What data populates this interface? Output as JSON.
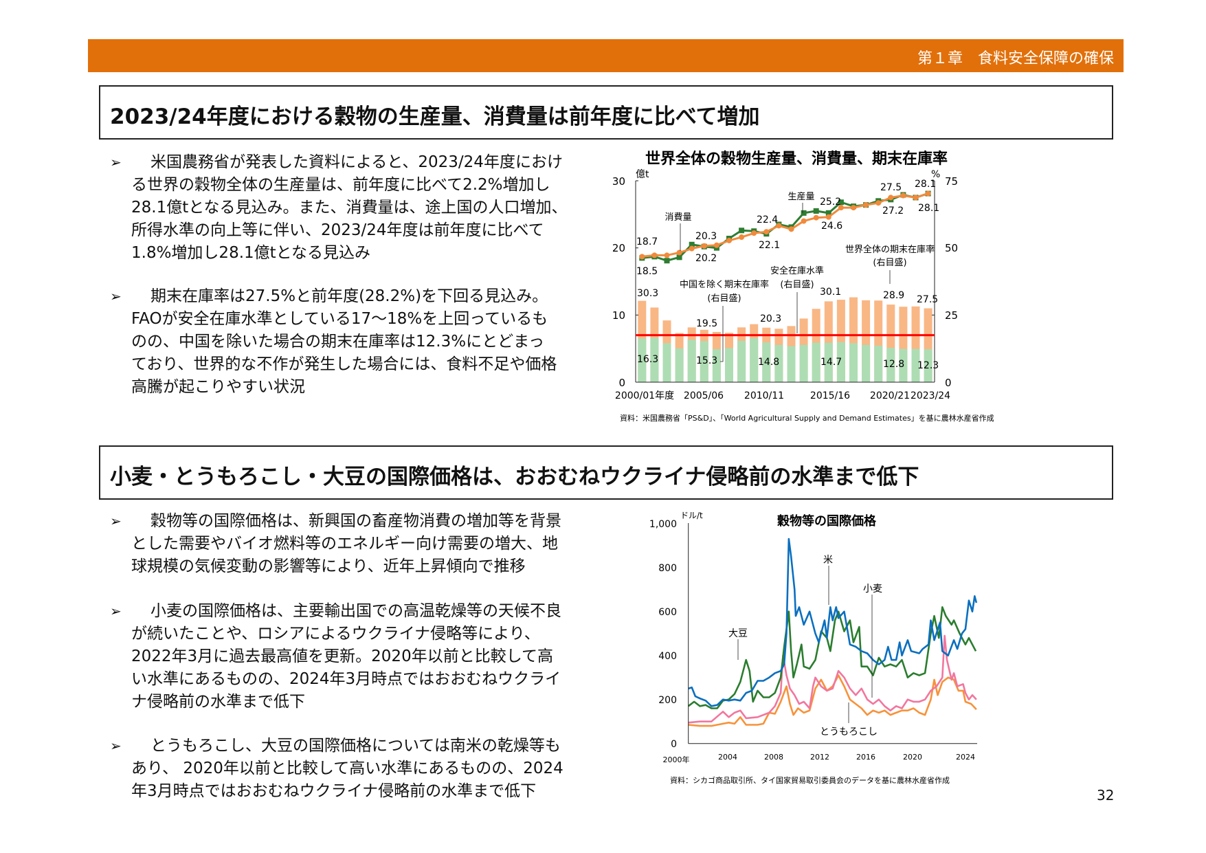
{
  "header": {
    "chapter": "第１章　食料安全保障の確保",
    "color": "#E2700A"
  },
  "section1": {
    "title": "2023/24年度における穀物の生産量、消費量は前年度に比べて増加",
    "bullets": [
      {
        "lines": [
          "米国農務省が発表した資料によると、2023/24年度におけ",
          "る世界の穀物全体の生産量は、前年度に比べて2.2%増加し",
          "28.1億tとなる見込み。また、消費量は、途上国の人口増加、",
          "所得水準の向上等に伴い、2023/24年度は前年度に比べて",
          "1.8%増加し28.1億tとなる見込み"
        ]
      },
      {
        "lines": [
          "期末在庫率は27.5%と前年度(28.2%)を下回る見込み。",
          "FAOが安全在庫水準としている17～18%を上回っているも",
          "のの、中国を除いた場合の期末在庫率は12.3%にとどまっ",
          "ており、世界的な不作が発生した場合には、食料不足や価格",
          "高騰が起こりやすい状況"
        ]
      }
    ]
  },
  "section2": {
    "title": "小麦・とうもろこし・大豆の国際価格は、おおむねウクライナ侵略前の水準まで低下",
    "bullets": [
      {
        "lines": [
          "穀物等の国際価格は、新興国の畜産物消費の増加等を背景",
          "とした需要やバイオ燃料等のエネルギー向け需要の増大、地",
          "球規模の気候変動の影響等により、近年上昇傾向で推移"
        ]
      },
      {
        "lines": [
          "小麦の国際価格は、主要輸出国での高温乾燥等の天候不良",
          "が続いたことや、ロシアによるウクライナ侵略等により、",
          "2022年3月に過去最高値を更新。2020年以前と比較して高",
          "い水準にあるものの、2024年3月時点ではおおむねウクライ",
          "ナ侵略前の水準まで低下"
        ]
      },
      {
        "lines": [
          "とうもろこし、大豆の国際価格については南米の乾燥等も",
          "あり、 2020年以前と比較して高い水準にあるものの、2024",
          "年3月時点ではおおむねウクライナ侵略前の水準まで低下"
        ]
      }
    ]
  },
  "bullet_glyph": "➢",
  "page_number": "32",
  "chart_data": [
    {
      "type": "bar+line",
      "title": "世界全体の穀物生産量、消費量、期末在庫率",
      "ylabel_left": "億t",
      "ylabel_right": "%",
      "ylim_left": [
        0,
        30
      ],
      "ylim_right": [
        0,
        75
      ],
      "yticks_left": [
        "30",
        "20",
        "10",
        "0"
      ],
      "yticks_right": [
        "75",
        "50",
        "25",
        "0"
      ],
      "categories": [
        "2000/01",
        "2001/02",
        "2002/03",
        "2003/04",
        "2004/05",
        "2005/06",
        "2006/07",
        "2007/08",
        "2008/09",
        "2009/10",
        "2010/11",
        "2011/12",
        "2012/13",
        "2013/14",
        "2014/15",
        "2015/16",
        "2016/17",
        "2017/18",
        "2018/19",
        "2019/20",
        "2020/21",
        "2021/22",
        "2022/23",
        "2023/24"
      ],
      "xtick_labels": [
        "2000/01年度",
        "2005/06",
        "2010/11",
        "2015/16",
        "2020/21",
        "2023/24"
      ],
      "series": [
        {
          "name": "生産量",
          "axis": "left",
          "kind": "line",
          "color": "#2E7D32",
          "values": [
            18.5,
            18.7,
            18.1,
            18.6,
            20.5,
            20.2,
            20.0,
            21.4,
            22.6,
            22.5,
            22.1,
            23.5,
            23.1,
            25.2,
            25.5,
            25.2,
            26.8,
            26.2,
            26.4,
            27.0,
            27.2,
            27.9,
            27.5,
            28.1
          ]
        },
        {
          "name": "消費量",
          "axis": "left",
          "kind": "line",
          "color": "#F08A3C",
          "values": [
            18.7,
            18.9,
            18.9,
            19.3,
            19.9,
            20.3,
            20.4,
            21.1,
            21.6,
            22.2,
            22.4,
            23.3,
            22.8,
            24.0,
            24.5,
            24.6,
            26.0,
            26.0,
            26.4,
            26.7,
            27.5,
            27.8,
            27.5,
            28.1
          ]
        },
        {
          "name": "世界全体の期末在庫率(右目盛)",
          "axis": "right",
          "kind": "bar",
          "color": "#F9B785",
          "values": [
            30.3,
            27.8,
            23.0,
            18.3,
            20.4,
            19.5,
            18.7,
            18.4,
            20.4,
            21.6,
            20.3,
            19.9,
            20.9,
            23.7,
            27.3,
            30.1,
            30.7,
            31.6,
            30.5,
            30.4,
            28.9,
            28.1,
            28.2,
            27.5
          ]
        },
        {
          "name": "中国を除く期末在庫率(右目盛)",
          "axis": "right",
          "kind": "bar",
          "color": "#AEDDB4",
          "values": [
            16.3,
            16.6,
            14.5,
            12.6,
            15.8,
            15.3,
            12.3,
            12.7,
            15.4,
            16.4,
            14.8,
            13.9,
            13.4,
            13.9,
            14.7,
            14.7,
            14.9,
            14.5,
            13.9,
            13.6,
            12.8,
            12.4,
            12.4,
            12.3
          ]
        }
      ],
      "reference_line": {
        "name": "安全在庫水準(右目盛)",
        "value": 17.5,
        "color": "#FF0000"
      },
      "annotations": {
        "consumption": "消費量",
        "production": "生産量",
        "world_ratio": "世界全体の期末在庫率",
        "world_ratio_axis": "(右目盛)",
        "china_ratio": "中国を除く期末在庫率",
        "china_ratio_axis": "(右目盛)",
        "safety": "安全在庫水準",
        "safety_axis": "(右目盛)"
      },
      "data_labels": [
        "18.7",
        "18.5",
        "20.3",
        "20.2",
        "22.4",
        "22.1",
        "25.2",
        "24.6",
        "27.5",
        "27.2",
        "28.1",
        "28.1",
        "30.3",
        "19.5",
        "20.3",
        "30.1",
        "28.9",
        "27.5",
        "16.3",
        "15.3",
        "14.8",
        "14.7",
        "12.8",
        "12.3"
      ],
      "source": "資料：米国農務省「PS&D」、「World Agricultural Supply and Demand Estimates」を基に農林水産省作成"
    },
    {
      "type": "line",
      "title": "穀物等の国際価格",
      "ylabel": "ドル/t",
      "ylim": [
        0,
        1000
      ],
      "xlim": [
        2000,
        2025
      ],
      "yticks": [
        "1,000",
        "800",
        "600",
        "400",
        "200",
        "0"
      ],
      "xticks": [
        "2000年",
        "2004",
        "2008",
        "2012",
        "2016",
        "2020",
        "2024"
      ],
      "series": [
        {
          "name": "米",
          "color": "#0B6FBF",
          "x": [
            2000,
            2000.3,
            2000.6,
            2001,
            2001.5,
            2002,
            2002.5,
            2003,
            2003.5,
            2004,
            2004.5,
            2005,
            2005.5,
            2006,
            2006.5,
            2007,
            2007.5,
            2008,
            2008.3,
            2008.5,
            2008.7,
            2008.9,
            2009.2,
            2009.3,
            2009.6,
            2010,
            2010.5,
            2011,
            2011.3,
            2011.8,
            2012,
            2012.3,
            2012.5,
            2012.8,
            2013,
            2013.5,
            2014,
            2014.5,
            2015,
            2015.5,
            2016,
            2016.5,
            2017,
            2017.3,
            2017.6,
            2018,
            2018.3,
            2018.5,
            2019,
            2019.3,
            2020,
            2020.3,
            2020.8,
            2021,
            2021.3,
            2021.8,
            2022,
            2022.5,
            2023,
            2023.3,
            2023.7,
            2024,
            2024.3,
            2024.6,
            2024.8,
            2024.95
          ],
          "y": [
            250,
            255,
            215,
            205,
            195,
            170,
            175,
            200,
            195,
            200,
            195,
            230,
            240,
            285,
            285,
            300,
            320,
            330,
            360,
            500,
            930,
            850,
            700,
            580,
            620,
            540,
            600,
            500,
            460,
            560,
            480,
            620,
            560,
            620,
            570,
            600,
            450,
            440,
            420,
            410,
            380,
            360,
            380,
            440,
            380,
            380,
            460,
            400,
            470,
            420,
            410,
            430,
            450,
            560,
            470,
            550,
            420,
            400,
            470,
            430,
            500,
            520,
            650,
            600,
            670,
            640
          ]
        },
        {
          "name": "大豆",
          "color": "#2A7D2E",
          "x": [
            2000,
            2000.5,
            2001,
            2001.5,
            2002,
            2002.5,
            2003,
            2003.5,
            2004,
            2004.5,
            2005,
            2005.3,
            2005.6,
            2006,
            2006.5,
            2007,
            2007.5,
            2008,
            2008.3,
            2008.7,
            2008.9,
            2009.1,
            2009.4,
            2009.8,
            2010,
            2010.5,
            2011,
            2011.5,
            2012,
            2012.3,
            2012.7,
            2013,
            2013.5,
            2014,
            2014.3,
            2014.8,
            2015,
            2015.5,
            2016,
            2016.5,
            2017,
            2017.5,
            2018,
            2018.5,
            2019,
            2019.5,
            2020,
            2020.5,
            2021,
            2021.3,
            2021.7,
            2022,
            2022.3,
            2022.8,
            2023,
            2023.5,
            2024,
            2024.3,
            2024.9
          ],
          "y": [
            170,
            190,
            170,
            175,
            160,
            160,
            195,
            200,
            225,
            280,
            380,
            330,
            190,
            240,
            210,
            210,
            230,
            300,
            440,
            600,
            420,
            300,
            360,
            450,
            350,
            340,
            380,
            510,
            480,
            420,
            560,
            600,
            510,
            560,
            460,
            530,
            350,
            350,
            310,
            390,
            350,
            360,
            350,
            380,
            300,
            320,
            310,
            320,
            500,
            580,
            480,
            620,
            580,
            540,
            560,
            500,
            450,
            480,
            420
          ]
        },
        {
          "name": "小麦",
          "color": "#F2769E",
          "x": [
            2000,
            2001,
            2002,
            2003,
            2003.5,
            2004,
            2004.5,
            2005,
            2006,
            2007,
            2007.5,
            2008,
            2008.2,
            2008.5,
            2008.8,
            2009.2,
            2009.6,
            2010,
            2010.5,
            2010.8,
            2011,
            2011.5,
            2012,
            2012.5,
            2013,
            2013.5,
            2014,
            2014.5,
            2015,
            2015.5,
            2016,
            2016.5,
            2017,
            2017.5,
            2018,
            2018.5,
            2019,
            2019.5,
            2020,
            2020.5,
            2021,
            2021.5,
            2022,
            2022.2,
            2022.4,
            2022.8,
            2023,
            2023.3,
            2023.8,
            2024,
            2024.3,
            2024.6,
            2024.95
          ],
          "y": [
            95,
            100,
            100,
            145,
            120,
            140,
            150,
            115,
            120,
            140,
            170,
            230,
            400,
            310,
            250,
            220,
            180,
            190,
            160,
            260,
            300,
            260,
            240,
            250,
            330,
            300,
            250,
            220,
            250,
            200,
            180,
            200,
            170,
            150,
            170,
            160,
            200,
            190,
            190,
            200,
            240,
            260,
            300,
            490,
            380,
            290,
            320,
            260,
            270,
            230,
            200,
            220,
            200
          ]
        },
        {
          "name": "とうもろこし",
          "color": "#F7923A",
          "x": [
            2000,
            2001,
            2002,
            2003,
            2003.5,
            2004,
            2004.5,
            2005,
            2006,
            2006.5,
            2007,
            2007.5,
            2008,
            2008.5,
            2008.8,
            2009.1,
            2009.5,
            2010,
            2010.5,
            2011,
            2011.5,
            2012,
            2012.5,
            2013,
            2013.5,
            2014,
            2014.5,
            2015,
            2015.5,
            2016,
            2016.5,
            2017,
            2017.5,
            2018,
            2018.5,
            2019,
            2019.5,
            2020,
            2020.5,
            2021,
            2021.3,
            2021.6,
            2022,
            2022.5,
            2023,
            2023.4,
            2023.8,
            2024,
            2024.5,
            2024.95
          ],
          "y": [
            85,
            80,
            80,
            90,
            95,
            90,
            120,
            85,
            85,
            90,
            140,
            135,
            190,
            260,
            180,
            130,
            160,
            140,
            150,
            250,
            290,
            240,
            260,
            310,
            260,
            200,
            180,
            160,
            130,
            150,
            140,
            150,
            130,
            140,
            150,
            150,
            160,
            140,
            130,
            200,
            290,
            220,
            280,
            300,
            290,
            240,
            240,
            190,
            180,
            155
          ]
        }
      ],
      "source": "資料：シカゴ商品取引所、タイ国家貿易取引委員会のデータを基に農林水産省作成"
    }
  ]
}
